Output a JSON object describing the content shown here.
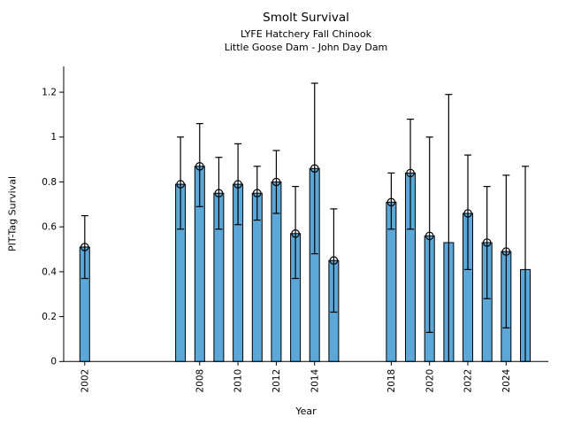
{
  "chart_data": {
    "type": "bar",
    "title": "Smolt Survival",
    "subtitle1": "LYFE Hatchery Fall Chinook",
    "subtitle2": "Little Goose Dam - John Day Dam",
    "xlabel": "Year",
    "ylabel": "PIT-Tag Survival",
    "grid": false,
    "legend": null,
    "bar_color": "#5BA7D8",
    "edge_color": "#000000",
    "marker_style": "open-circle",
    "xlim": [
      2000.9,
      2026.2
    ],
    "ylim": [
      0,
      1.315
    ],
    "yticks": [
      0,
      0.2,
      0.4,
      0.6,
      0.8,
      1,
      1.2
    ],
    "ytick_labels": [
      "0",
      "0.2",
      "0.4",
      "0.6",
      "0.8",
      "1",
      "1.2"
    ],
    "xticks": [
      2002,
      2008,
      2010,
      2012,
      2014,
      2018,
      2020,
      2022,
      2024
    ],
    "points": [
      {
        "year": 2002,
        "value": 0.51,
        "err_lo": 0.37,
        "err_hi": 0.65,
        "marker": true
      },
      {
        "year": 2007,
        "value": 0.79,
        "err_lo": 0.59,
        "err_hi": 1.0,
        "marker": true
      },
      {
        "year": 2008,
        "value": 0.87,
        "err_lo": 0.69,
        "err_hi": 1.06,
        "marker": true
      },
      {
        "year": 2009,
        "value": 0.75,
        "err_lo": 0.59,
        "err_hi": 0.91,
        "marker": true
      },
      {
        "year": 2010,
        "value": 0.79,
        "err_lo": 0.61,
        "err_hi": 0.97,
        "marker": true
      },
      {
        "year": 2011,
        "value": 0.75,
        "err_lo": 0.63,
        "err_hi": 0.87,
        "marker": true
      },
      {
        "year": 2012,
        "value": 0.8,
        "err_lo": 0.66,
        "err_hi": 0.94,
        "marker": true
      },
      {
        "year": 2013,
        "value": 0.57,
        "err_lo": 0.37,
        "err_hi": 0.78,
        "marker": true
      },
      {
        "year": 2014,
        "value": 0.86,
        "err_lo": 0.48,
        "err_hi": 1.24,
        "marker": true
      },
      {
        "year": 2015,
        "value": 0.45,
        "err_lo": 0.22,
        "err_hi": 0.68,
        "marker": true
      },
      {
        "year": 2018,
        "value": 0.71,
        "err_lo": 0.59,
        "err_hi": 0.84,
        "marker": true
      },
      {
        "year": 2019,
        "value": 0.84,
        "err_lo": 0.59,
        "err_hi": 1.08,
        "marker": true
      },
      {
        "year": 2020,
        "value": 0.56,
        "err_lo": 0.13,
        "err_hi": 1.0,
        "marker": true
      },
      {
        "year": 2021,
        "value": 0.53,
        "err_lo": 0.0,
        "err_hi": 1.19,
        "marker": false
      },
      {
        "year": 2022,
        "value": 0.66,
        "err_lo": 0.41,
        "err_hi": 0.92,
        "marker": true
      },
      {
        "year": 2023,
        "value": 0.53,
        "err_lo": 0.28,
        "err_hi": 0.78,
        "marker": true
      },
      {
        "year": 2024,
        "value": 0.49,
        "err_lo": 0.15,
        "err_hi": 0.83,
        "marker": true
      },
      {
        "year": 2025,
        "value": 0.41,
        "err_lo": 0.0,
        "err_hi": 0.87,
        "marker": false
      }
    ]
  }
}
